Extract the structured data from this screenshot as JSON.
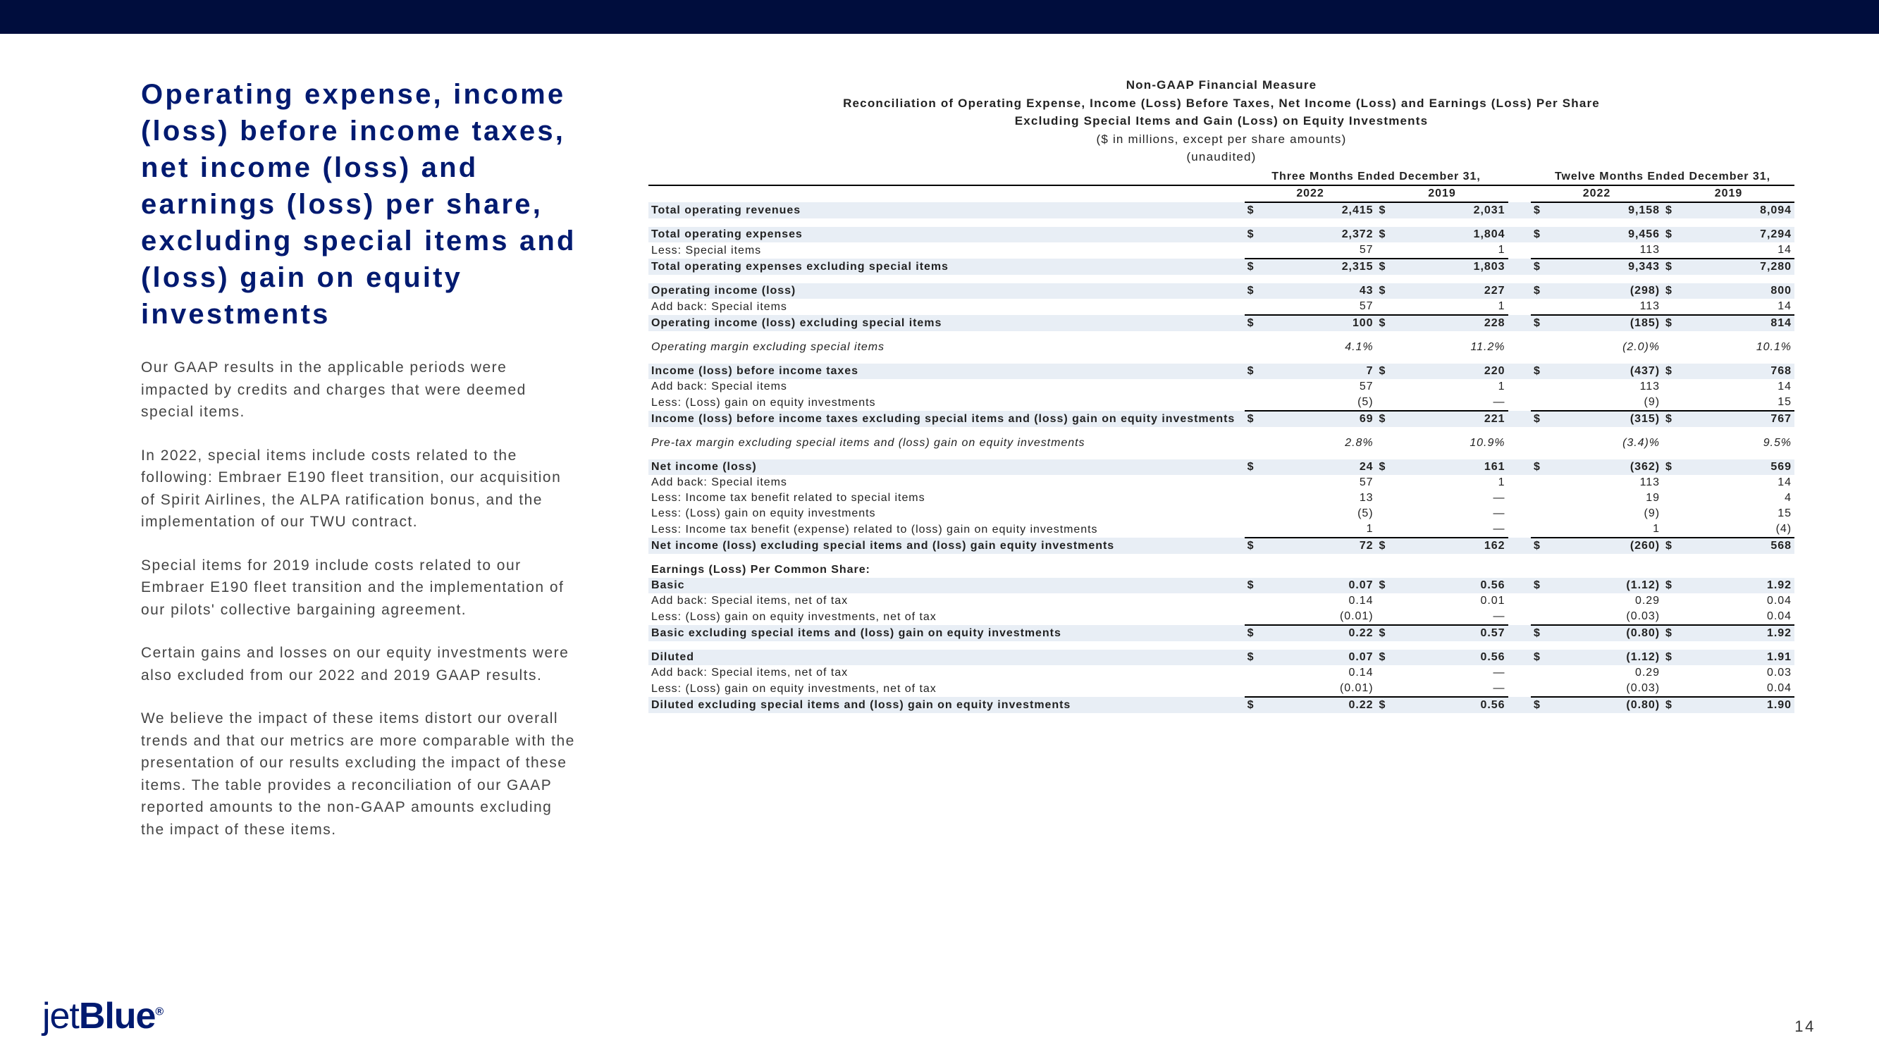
{
  "page_number": "14",
  "logo": {
    "jet": "jet",
    "blue": "Blue"
  },
  "left": {
    "title": "Operating expense, income (loss) before income taxes, net income (loss) and earnings (loss) per share, excluding special items and (loss) gain on equity investments",
    "paras": [
      "Our GAAP results in the applicable periods were impacted by credits and charges that were deemed special items.",
      "In 2022, special items include costs related to the following: Embraer E190 fleet transition, our acquisition of Spirit Airlines, the ALPA ratification bonus, and the implementation of our TWU contract.",
      "Special items for 2019 include costs related to our Embraer E190 fleet transition and the implementation of our pilots' collective bargaining agreement.",
      "Certain gains and losses on our equity investments were also excluded from our 2022 and 2019 GAAP results.",
      "We believe the impact of these items distort our overall trends and that our metrics are more comparable with the presentation of our results excluding the impact of these items. The table provides a reconciliation of our GAAP reported amounts to the non-GAAP amounts excluding the impact of these items."
    ]
  },
  "table": {
    "header": {
      "l1": "Non-GAAP Financial Measure",
      "l2": "Reconciliation of Operating Expense, Income (Loss) Before Taxes, Net Income (Loss) and Earnings (Loss) Per Share",
      "l3": "Excluding Special Items and Gain (Loss) on Equity Investments",
      "l4": "($ in millions, except per share amounts)",
      "l5": "(unaudited)"
    },
    "periods": [
      "Three Months Ended December 31,",
      "Twelve Months Ended December 31,"
    ],
    "years": [
      "2022",
      "2019",
      "2022",
      "2019"
    ],
    "rows": [
      {
        "label": "Total operating revenues",
        "d": true,
        "v": [
          "2,415",
          "2,031",
          "9,158",
          "8,094"
        ],
        "bold": true,
        "stripe": true
      },
      {
        "spacer": true
      },
      {
        "label": "Total operating expenses",
        "d": true,
        "v": [
          "2,372",
          "1,804",
          "9,456",
          "7,294"
        ],
        "bold": true,
        "stripe": true
      },
      {
        "label": "Less: Special items",
        "v": [
          "57",
          "1",
          "113",
          "14"
        ],
        "underline": true
      },
      {
        "label": "Total operating expenses excluding special items",
        "d": true,
        "v": [
          "2,315",
          "1,803",
          "9,343",
          "7,280"
        ],
        "bold": true,
        "stripe": true
      },
      {
        "spacer": true
      },
      {
        "label": "Operating income (loss)",
        "d": true,
        "v": [
          "43",
          "227",
          "(298)",
          "800"
        ],
        "bold": true,
        "stripe": true
      },
      {
        "label": "Add back: Special items",
        "v": [
          "57",
          "1",
          "113",
          "14"
        ],
        "underline": true
      },
      {
        "label": "Operating income (loss) excluding special items",
        "d": true,
        "v": [
          "100",
          "228",
          "(185)",
          "814"
        ],
        "bold": true,
        "stripe": true
      },
      {
        "spacer": true
      },
      {
        "label": "Operating margin excluding special items",
        "v": [
          "4.1%",
          "11.2%",
          "(2.0)%",
          "10.1%"
        ],
        "italic": true
      },
      {
        "spacer": true
      },
      {
        "label": "Income (loss) before income taxes",
        "d": true,
        "v": [
          "7",
          "220",
          "(437)",
          "768"
        ],
        "bold": true,
        "stripe": true
      },
      {
        "label": "Add back: Special items",
        "v": [
          "57",
          "1",
          "113",
          "14"
        ]
      },
      {
        "label": "Less: (Loss) gain on equity investments",
        "v": [
          "(5)",
          "—",
          "(9)",
          "15"
        ],
        "underline": true
      },
      {
        "label": "Income (loss) before income taxes excluding special items and (loss) gain on equity investments",
        "d": true,
        "v": [
          "69",
          "221",
          "(315)",
          "767"
        ],
        "bold": true,
        "stripe": true
      },
      {
        "spacer": true
      },
      {
        "label": "Pre-tax margin excluding special items and (loss) gain on equity investments",
        "v": [
          "2.8%",
          "10.9%",
          "(3.4)%",
          "9.5%"
        ],
        "italic": true
      },
      {
        "spacer": true
      },
      {
        "label": "Net income (loss)",
        "d": true,
        "v": [
          "24",
          "161",
          "(362)",
          "569"
        ],
        "bold": true,
        "stripe": true
      },
      {
        "label": "Add back: Special items",
        "v": [
          "57",
          "1",
          "113",
          "14"
        ]
      },
      {
        "label": "Less: Income tax benefit related to special items",
        "v": [
          "13",
          "—",
          "19",
          "4"
        ]
      },
      {
        "label": "Less: (Loss) gain on equity investments",
        "v": [
          "(5)",
          "—",
          "(9)",
          "15"
        ]
      },
      {
        "label": "Less: Income tax benefit (expense) related to (loss) gain on equity investments",
        "v": [
          "1",
          "—",
          "1",
          "(4)"
        ],
        "underline": true
      },
      {
        "label": "Net income (loss) excluding special items and (loss) gain equity investments",
        "d": true,
        "v": [
          "72",
          "162",
          "(260)",
          "568"
        ],
        "bold": true,
        "stripe": true
      },
      {
        "spacer": true
      },
      {
        "label": "Earnings (Loss) Per Common Share:",
        "bold": true
      },
      {
        "label": "Basic",
        "d": true,
        "v": [
          "0.07",
          "0.56",
          "(1.12)",
          "1.92"
        ],
        "bold": true,
        "stripe": true
      },
      {
        "label": "Add back: Special items, net of tax",
        "v": [
          "0.14",
          "0.01",
          "0.29",
          "0.04"
        ]
      },
      {
        "label": "Less: (Loss) gain on equity investments, net of tax",
        "v": [
          "(0.01)",
          "—",
          "(0.03)",
          "0.04"
        ],
        "underline": true
      },
      {
        "label": "Basic excluding special items and (loss) gain on equity investments",
        "d": true,
        "v": [
          "0.22",
          "0.57",
          "(0.80)",
          "1.92"
        ],
        "bold": true,
        "stripe": true
      },
      {
        "spacer": true
      },
      {
        "label": "Diluted",
        "d": true,
        "v": [
          "0.07",
          "0.56",
          "(1.12)",
          "1.91"
        ],
        "bold": true,
        "stripe": true
      },
      {
        "label": "Add back: Special items, net of tax",
        "v": [
          "0.14",
          "—",
          "0.29",
          "0.03"
        ]
      },
      {
        "label": "Less: (Loss) gain on equity investments, net of tax",
        "v": [
          "(0.01)",
          "—",
          "(0.03)",
          "0.04"
        ],
        "underline": true
      },
      {
        "label": "Diluted excluding special items and (loss) gain on equity investments",
        "d": true,
        "v": [
          "0.22",
          "0.56",
          "(0.80)",
          "1.90"
        ],
        "bold": true,
        "stripe": true
      }
    ]
  }
}
